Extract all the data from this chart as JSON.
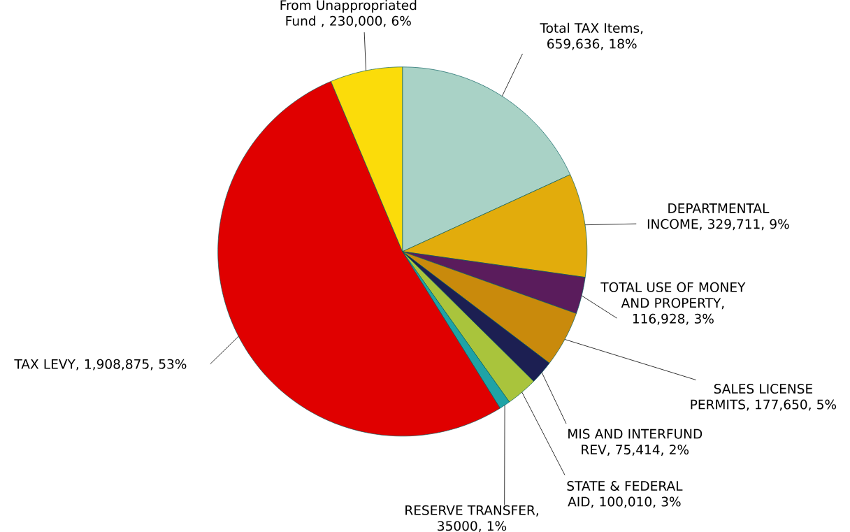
{
  "chart_data": {
    "type": "pie",
    "categories": [
      "Total TAX Items",
      "DEPARTMENTAL INCOME",
      "TOTAL USE OF MONEY AND PROPERTY",
      "SALES LICENSE PERMITS",
      "MIS AND INTERFUND REV",
      "STATE & FEDERAL AID",
      "RESERVE TRANSFER",
      "TAX LEVY",
      "From Unappropriated Fund "
    ],
    "values": [
      659636,
      329711,
      116928,
      177650,
      75414,
      100010,
      35000,
      1908875,
      230000
    ],
    "value_labels": [
      ", 659,636, 18%",
      ", 329,711, 9%",
      ", 116,928, 3%",
      ", 177,650, 5%",
      ", 75,414, 2%",
      ", 100,010, 3%",
      ", 35000, 1%",
      ", 1,908,875, 53%",
      ", 230,000, 6%"
    ],
    "colors": [
      "#a9d2c6",
      "#e2ac0c",
      "#5a1c5c",
      "#c98a0c",
      "#1c1f52",
      "#a9c43c",
      "#1fa3a6",
      "#e00000",
      "#fbdc0a"
    ]
  }
}
